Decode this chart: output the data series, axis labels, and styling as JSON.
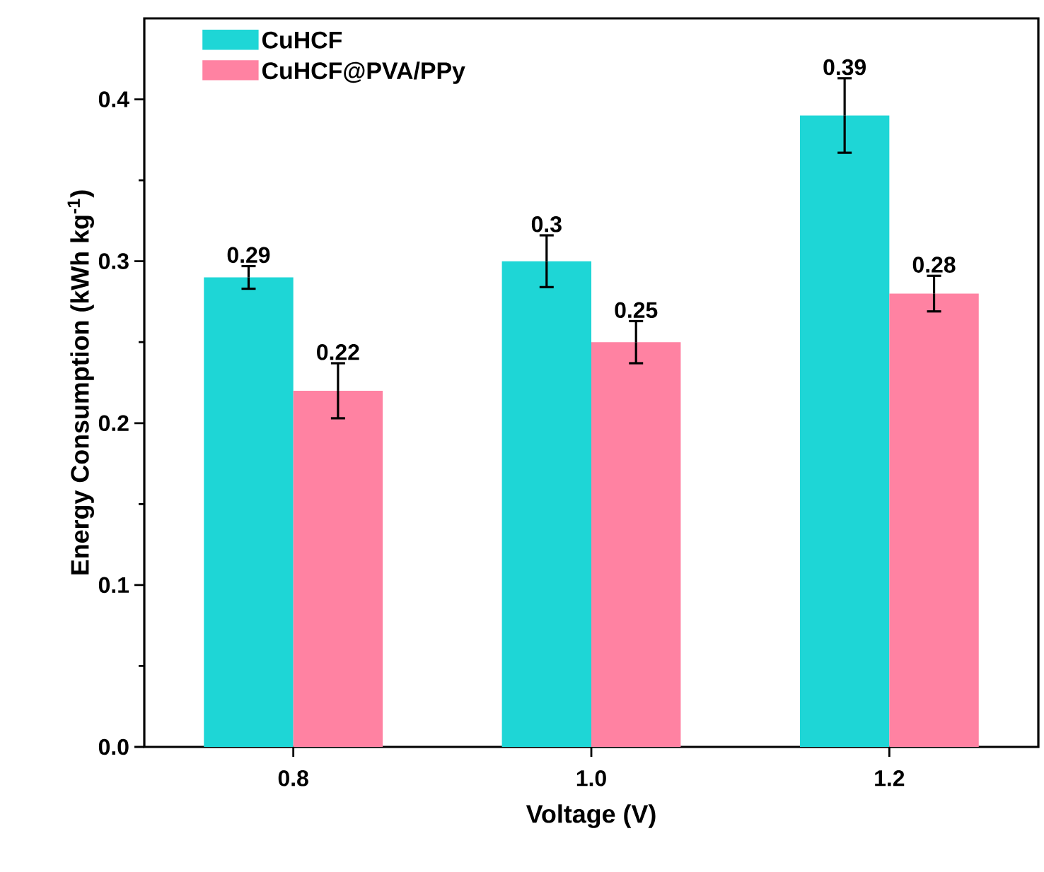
{
  "chart_data": {
    "type": "bar",
    "xlabel": "Voltage (V)",
    "ylabel": "Energy Consumption (kWh kg$^{-1}$)",
    "categories": [
      "0.8",
      "1.0",
      "1.2"
    ],
    "series": [
      {
        "name": "CuHCF",
        "color": "#1ed6d6",
        "values": [
          0.29,
          0.3,
          0.39
        ],
        "errors": [
          0.007,
          0.016,
          0.023
        ]
      },
      {
        "name": "CuHCF@PVA/PPy",
        "color": "#ff82a2",
        "values": [
          0.22,
          0.25,
          0.28
        ],
        "errors": [
          0.017,
          0.013,
          0.011
        ]
      }
    ],
    "ylim": [
      0,
      0.45
    ],
    "yticks": [
      {
        "value": 0,
        "label": "0.0"
      },
      0.1,
      0.2,
      0.3,
      0.4
    ],
    "data_labels": true,
    "legend": "top left",
    "grid": false
  }
}
